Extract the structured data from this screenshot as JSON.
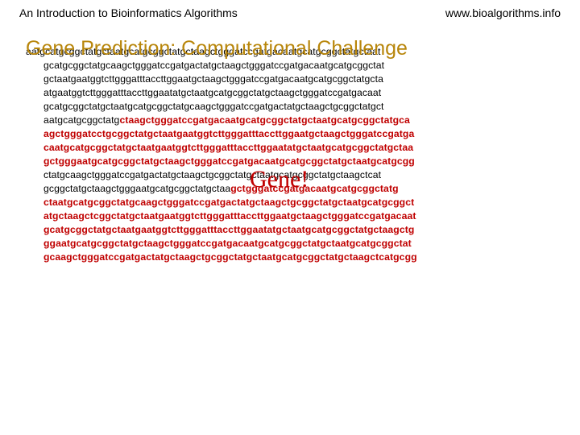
{
  "header": {
    "left": "An Introduction to Bioinformatics Algorithms",
    "right": "www.bioalgorithms.info"
  },
  "title": "Gene Prediction: Computational Challenge",
  "gene_label": "Gene!",
  "colors": {
    "title_color": "#b8860b",
    "highlight_color": "#c00000",
    "text_color": "#000000",
    "background": "#ffffff"
  },
  "typography": {
    "header_font": "Comic Sans MS",
    "header_fontsize": 14,
    "title_font": "Comic Sans MS",
    "title_fontsize": 25,
    "body_font": "Verdana",
    "body_fontsize": 12.2,
    "body_lineheight": 17,
    "gene_label_font": "Times New Roman",
    "gene_label_fontsize": 30
  },
  "sequence_lines": [
    {
      "indent": false,
      "runs": [
        {
          "t": "aatgcatgcggctatgctaatgcatgcggctatgctaagctgggatccgatgacaatgcatgcggctatgctaat",
          "hl": false
        }
      ]
    },
    {
      "indent": true,
      "runs": [
        {
          "t": "gcatgcggctatgcaagctgggatccgatgactatgctaagctgggatccgatgacaatgcatgcggctat",
          "hl": false
        }
      ]
    },
    {
      "indent": true,
      "runs": [
        {
          "t": "gctaatgaatggtcttgggatttaccttggaatgctaagctgggatccgatgacaatgcatgcggctatgcta",
          "hl": false
        }
      ]
    },
    {
      "indent": true,
      "runs": [
        {
          "t": "atgaatggtcttgggatttaccttggaatatgctaatgcatgcggctatgctaagctgggatccgatgacaat",
          "hl": false
        }
      ]
    },
    {
      "indent": true,
      "runs": [
        {
          "t": "gcatgcggctatgctaatgcatgcggctatgcaagctgggatccgatgactatgctaagctgcggctatgct",
          "hl": false
        }
      ]
    },
    {
      "indent": true,
      "runs": [
        {
          "t": "aatgcatgcggctatg",
          "hl": false
        },
        {
          "t": "ctaagctgggatccgatgacaatgcatgcggctatgctaatgcatgcggctatgca",
          "hl": true
        }
      ]
    },
    {
      "indent": true,
      "runs": [
        {
          "t": "agctgggatcctgcggctatgctaatgaatggtcttgggatttaccttggaatgctaagctgggatccgatga",
          "hl": true
        }
      ]
    },
    {
      "indent": true,
      "runs": [
        {
          "t": "caatgcatgcggctatgctaatgaatggtcttgggatttaccttggaatatgctaatgcatgcggctatgctaa",
          "hl": true
        }
      ]
    },
    {
      "indent": true,
      "runs": [
        {
          "t": "gctgggaatgcatgcggctatgctaagctgggatccgatgacaatgcatgcggctatgctaatgcatgcgg",
          "hl": true
        }
      ]
    },
    {
      "indent": true,
      "runs": [
        {
          "t": "ctatgcaagctgggatccgatgactatgctaagctgcggctatgctaatgcatgcggctatgctaagctcat",
          "hl": false
        }
      ]
    },
    {
      "indent": true,
      "runs": [
        {
          "t": "gcggctatgctaagctgggaatgcatgcggctatgctaa",
          "hl": false
        },
        {
          "t": "gctgggatccgatgacaatgcatgcggctatg",
          "hl": true
        }
      ]
    },
    {
      "indent": true,
      "runs": [
        {
          "t": "ctaatgcatgcggctatgcaagctgggatccgatgactatgctaagctgcggctatgctaatgcatgcggct",
          "hl": true
        }
      ]
    },
    {
      "indent": true,
      "runs": [
        {
          "t": "atgctaagctcggctatgctaatgaatggtcttgggatttaccttggaatgctaagctgggatccgatgacaat",
          "hl": true
        }
      ]
    },
    {
      "indent": true,
      "runs": [
        {
          "t": "gcatgcggctatgctaatgaatggtcttgggatttaccttggaatatgctaatgcatgcggctatgctaagctg",
          "hl": true
        }
      ]
    },
    {
      "indent": true,
      "runs": [
        {
          "t": "ggaatgcatgcggctatgctaagctgggatccgatgacaatgcatgcggctatgctaatgcatgcggctat",
          "hl": true
        }
      ]
    },
    {
      "indent": true,
      "runs": [
        {
          "t": "gcaagctgggatccgatgactatgctaagctgcggctatgctaatgcatgcggctatgctaagctcatgcgg",
          "hl": true
        }
      ]
    }
  ]
}
